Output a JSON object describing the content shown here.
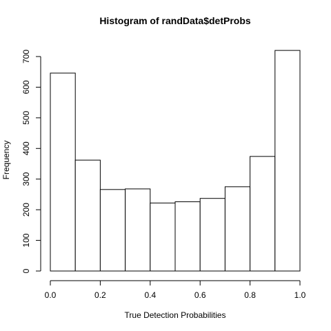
{
  "chart_data": {
    "type": "bar",
    "title": "Histogram of randData$detProbs",
    "xlabel": "True Detection Probabilities",
    "ylabel": "Frequency",
    "bins": [
      {
        "from": 0.0,
        "to": 0.1,
        "count": 646
      },
      {
        "from": 0.1,
        "to": 0.2,
        "count": 362
      },
      {
        "from": 0.2,
        "to": 0.3,
        "count": 266
      },
      {
        "from": 0.3,
        "to": 0.4,
        "count": 268
      },
      {
        "from": 0.4,
        "to": 0.5,
        "count": 222
      },
      {
        "from": 0.5,
        "to": 0.6,
        "count": 226
      },
      {
        "from": 0.6,
        "to": 0.7,
        "count": 237
      },
      {
        "from": 0.7,
        "to": 0.8,
        "count": 275
      },
      {
        "from": 0.8,
        "to": 0.9,
        "count": 374
      },
      {
        "from": 0.9,
        "to": 1.0,
        "count": 720
      }
    ],
    "xlim": [
      0,
      1
    ],
    "ylim": [
      0,
      720
    ],
    "x_ticks": [
      "0.0",
      "0.2",
      "0.4",
      "0.6",
      "0.8",
      "1.0"
    ],
    "y_ticks": [
      "0",
      "100",
      "200",
      "300",
      "400",
      "500",
      "600",
      "700"
    ],
    "grid": false,
    "legend": "none"
  }
}
